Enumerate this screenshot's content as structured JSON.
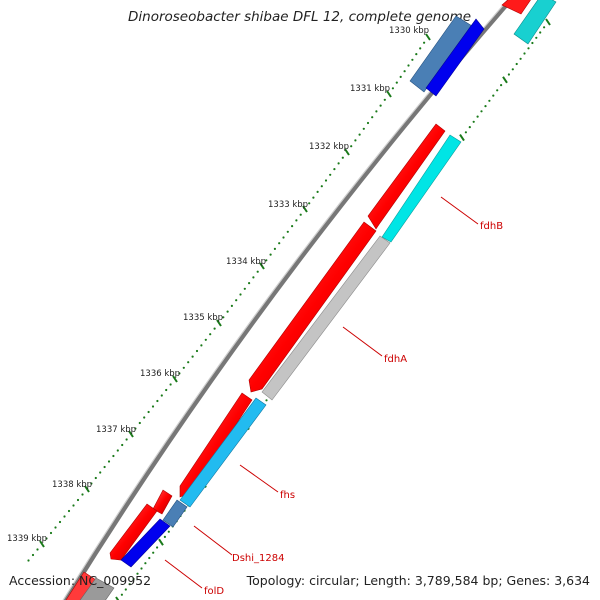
{
  "title": "Dinoroseobacter shibae DFL 12, complete genome",
  "accession": "Accession: NC_009952",
  "summary": "Topology: circular; Length: 3,789,584 bp; Genes: 3,634",
  "scale": {
    "unit": "kbp",
    "ticks": [
      {
        "label": "1330 kbp"
      },
      {
        "label": "1331 kbp"
      },
      {
        "label": "1332 kbp"
      },
      {
        "label": "1333 kbp"
      },
      {
        "label": "1334 kbp"
      },
      {
        "label": "1335 kbp"
      },
      {
        "label": "1336 kbp"
      },
      {
        "label": "1337 kbp"
      },
      {
        "label": "1338 kbp"
      },
      {
        "label": "1339 kbp"
      }
    ]
  },
  "gene_labels": [
    {
      "name": "fdhB"
    },
    {
      "name": "fdhA"
    },
    {
      "name": "fhs"
    },
    {
      "name": "Dshi_1284"
    },
    {
      "name": "folD"
    }
  ],
  "colors": {
    "cds_forward": "#ff0000",
    "cds_reverse_a": "#00e5e5",
    "cds_reverse_b": "#0000ee",
    "cds_gray": "#bfbfbf",
    "cds_skyblue": "#22bbf0",
    "cds_steel": "#4a7fb5",
    "backbone": "#888888",
    "tick_major": "#1a7a1a",
    "label_line": "#cc0000"
  }
}
